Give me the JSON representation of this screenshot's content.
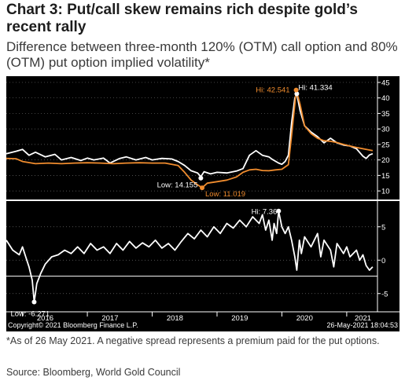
{
  "header": {
    "title": "Chart 3: Put/call skew remains rich despite gold’s recent rally",
    "subtitle": "Difference between three-month 120% (OTM) call option and 80% (OTM) put option implied volatility*"
  },
  "footer": {
    "footnote": "*As of 26 May 2021. A negative spread represents a premium paid for the put options.",
    "source": "Source: Bloomberg, World Gold Council",
    "copyright": "Copyright© 2021 Bloomberg Finance L.P.",
    "timestamp": "26-May-2021 18:04:53"
  },
  "colors": {
    "background": "#000000",
    "series_white": "#ffffff",
    "series_orange": "#f08c2e",
    "label_orange": "#f08c2e",
    "text_white": "#ffffff"
  },
  "chart_data": [
    {
      "type": "line",
      "panel": "top",
      "xlim": [
        2015.75,
        2021.45
      ],
      "ylim": [
        8,
        46
      ],
      "yticks": [
        10,
        15,
        20,
        25,
        30,
        35,
        40,
        45
      ],
      "series": [
        {
          "color": "#ffffff",
          "points": [
            [
              2015.75,
              22.0
            ],
            [
              2015.9,
              22.8
            ],
            [
              2016.0,
              23.4
            ],
            [
              2016.1,
              21.5
            ],
            [
              2016.2,
              22.5
            ],
            [
              2016.35,
              21.0
            ],
            [
              2016.5,
              21.8
            ],
            [
              2016.6,
              20.0
            ],
            [
              2016.75,
              20.8
            ],
            [
              2016.9,
              19.8
            ],
            [
              2017.0,
              20.6
            ],
            [
              2017.1,
              20.0
            ],
            [
              2017.25,
              20.6
            ],
            [
              2017.35,
              19.0
            ],
            [
              2017.5,
              20.5
            ],
            [
              2017.6,
              21.0
            ],
            [
              2017.75,
              20.0
            ],
            [
              2017.9,
              20.8
            ],
            [
              2018.0,
              20.0
            ],
            [
              2018.15,
              20.5
            ],
            [
              2018.3,
              20.3
            ],
            [
              2018.4,
              19.5
            ],
            [
              2018.5,
              18.2
            ],
            [
              2018.6,
              16.5
            ],
            [
              2018.7,
              15.8
            ],
            [
              2018.75,
              14.6
            ],
            [
              2018.8,
              16.2
            ],
            [
              2018.9,
              15.5
            ],
            [
              2019.0,
              16.0
            ],
            [
              2019.15,
              15.8
            ],
            [
              2019.3,
              16.4
            ],
            [
              2019.4,
              17.2
            ],
            [
              2019.5,
              21.5
            ],
            [
              2019.6,
              23.0
            ],
            [
              2019.7,
              21.5
            ],
            [
              2019.8,
              21.0
            ],
            [
              2019.85,
              20.2
            ],
            [
              2019.95,
              19.0
            ],
            [
              2020.0,
              18.6
            ],
            [
              2020.05,
              19.5
            ],
            [
              2020.1,
              21.5
            ],
            [
              2020.15,
              32.0
            ],
            [
              2020.2,
              40.0
            ],
            [
              2020.23,
              41.334
            ],
            [
              2020.28,
              36.0
            ],
            [
              2020.35,
              31.0
            ],
            [
              2020.45,
              29.0
            ],
            [
              2020.55,
              27.5
            ],
            [
              2020.65,
              25.5
            ],
            [
              2020.75,
              27.0
            ],
            [
              2020.85,
              25.5
            ],
            [
              2020.95,
              24.8
            ],
            [
              2021.05,
              24.5
            ],
            [
              2021.15,
              23.6
            ],
            [
              2021.25,
              21.2
            ],
            [
              2021.3,
              20.5
            ],
            [
              2021.35,
              21.6
            ],
            [
              2021.4,
              22.0
            ]
          ]
        },
        {
          "color": "#f08c2e",
          "points": [
            [
              2015.75,
              20.5
            ],
            [
              2015.9,
              20.4
            ],
            [
              2016.0,
              19.5
            ],
            [
              2016.2,
              18.8
            ],
            [
              2016.4,
              19.0
            ],
            [
              2016.6,
              18.8
            ],
            [
              2016.8,
              19.0
            ],
            [
              2017.0,
              19.1
            ],
            [
              2017.2,
              19.0
            ],
            [
              2017.4,
              18.8
            ],
            [
              2017.6,
              19.0
            ],
            [
              2017.8,
              19.1
            ],
            [
              2018.0,
              19.0
            ],
            [
              2018.2,
              19.0
            ],
            [
              2018.4,
              18.2
            ],
            [
              2018.5,
              16.0
            ],
            [
              2018.6,
              13.5
            ],
            [
              2018.7,
              12.0
            ],
            [
              2018.77,
              11.019
            ],
            [
              2018.85,
              12.5
            ],
            [
              2019.0,
              13.0
            ],
            [
              2019.15,
              13.5
            ],
            [
              2019.3,
              14.5
            ],
            [
              2019.4,
              16.0
            ],
            [
              2019.5,
              16.8
            ],
            [
              2019.6,
              17.0
            ],
            [
              2019.7,
              16.6
            ],
            [
              2019.8,
              16.5
            ],
            [
              2019.9,
              16.8
            ],
            [
              2020.0,
              17.0
            ],
            [
              2020.1,
              18.5
            ],
            [
              2020.15,
              28.0
            ],
            [
              2020.2,
              38.0
            ],
            [
              2020.22,
              42.541
            ],
            [
              2020.28,
              38.0
            ],
            [
              2020.35,
              31.0
            ],
            [
              2020.45,
              28.5
            ],
            [
              2020.55,
              27.0
            ],
            [
              2020.65,
              26.2
            ],
            [
              2020.75,
              26.0
            ],
            [
              2020.85,
              25.6
            ],
            [
              2020.95,
              25.0
            ],
            [
              2021.05,
              24.5
            ],
            [
              2021.15,
              24.0
            ],
            [
              2021.25,
              23.6
            ],
            [
              2021.35,
              23.2
            ],
            [
              2021.4,
              23.0
            ]
          ]
        }
      ],
      "annotations": [
        {
          "text": "Hi: 41.334",
          "color": "#ffffff",
          "x": 2020.23,
          "y": 41.334
        },
        {
          "text": "Hi: 42.541",
          "color": "#f08c2e",
          "x": 2020.22,
          "y": 42.541
        },
        {
          "text": "Low: 14.155",
          "color": "#ffffff",
          "x": 2018.75,
          "y": 14.155
        },
        {
          "text": "Low: 11.019",
          "color": "#f08c2e",
          "x": 2018.77,
          "y": 11.019
        }
      ]
    },
    {
      "type": "line",
      "panel": "bottom",
      "xlim": [
        2015.75,
        2021.45
      ],
      "ylim": [
        -7.5,
        8.5
      ],
      "yticks": [
        -5,
        0,
        5
      ],
      "reference_line": -2.4,
      "series": [
        {
          "color": "#ffffff",
          "points": [
            [
              2015.75,
              3.0
            ],
            [
              2015.85,
              1.5
            ],
            [
              2015.95,
              0.8
            ],
            [
              2016.0,
              2.0
            ],
            [
              2016.05,
              0.5
            ],
            [
              2016.1,
              -1.0
            ],
            [
              2016.15,
              -3.0
            ],
            [
              2016.18,
              -6.271
            ],
            [
              2016.22,
              -3.5
            ],
            [
              2016.28,
              -2.0
            ],
            [
              2016.35,
              -0.6
            ],
            [
              2016.45,
              0.5
            ],
            [
              2016.55,
              0.8
            ],
            [
              2016.65,
              1.5
            ],
            [
              2016.75,
              1.0
            ],
            [
              2016.85,
              2.0
            ],
            [
              2016.95,
              1.0
            ],
            [
              2017.05,
              2.5
            ],
            [
              2017.15,
              1.5
            ],
            [
              2017.25,
              2.0
            ],
            [
              2017.35,
              1.0
            ],
            [
              2017.45,
              2.5
            ],
            [
              2017.55,
              1.5
            ],
            [
              2017.65,
              2.8
            ],
            [
              2017.75,
              1.8
            ],
            [
              2017.85,
              2.6
            ],
            [
              2017.95,
              2.0
            ],
            [
              2018.05,
              3.0
            ],
            [
              2018.15,
              1.8
            ],
            [
              2018.25,
              2.5
            ],
            [
              2018.35,
              1.5
            ],
            [
              2018.45,
              2.8
            ],
            [
              2018.55,
              4.0
            ],
            [
              2018.65,
              3.2
            ],
            [
              2018.75,
              4.5
            ],
            [
              2018.85,
              3.5
            ],
            [
              2018.95,
              5.0
            ],
            [
              2019.05,
              4.0
            ],
            [
              2019.15,
              5.5
            ],
            [
              2019.25,
              4.8
            ],
            [
              2019.35,
              6.0
            ],
            [
              2019.45,
              5.0
            ],
            [
              2019.55,
              6.5
            ],
            [
              2019.65,
              5.5
            ],
            [
              2019.7,
              6.8
            ],
            [
              2019.75,
              4.5
            ],
            [
              2019.8,
              6.0
            ],
            [
              2019.85,
              3.0
            ],
            [
              2019.88,
              5.5
            ],
            [
              2019.92,
              4.0
            ],
            [
              2019.95,
              7.36
            ],
            [
              2020.0,
              5.0
            ],
            [
              2020.05,
              4.0
            ],
            [
              2020.1,
              5.0
            ],
            [
              2020.15,
              3.0
            ],
            [
              2020.2,
              0.5
            ],
            [
              2020.23,
              -1.5
            ],
            [
              2020.27,
              3.0
            ],
            [
              2020.3,
              1.0
            ],
            [
              2020.35,
              3.5
            ],
            [
              2020.45,
              2.0
            ],
            [
              2020.55,
              4.0
            ],
            [
              2020.6,
              0.5
            ],
            [
              2020.65,
              3.0
            ],
            [
              2020.75,
              1.5
            ],
            [
              2020.8,
              -1.0
            ],
            [
              2020.85,
              2.5
            ],
            [
              2020.95,
              1.0
            ],
            [
              2021.0,
              2.0
            ],
            [
              2021.05,
              0.5
            ],
            [
              2021.15,
              1.5
            ],
            [
              2021.2,
              0.0
            ],
            [
              2021.25,
              0.8
            ],
            [
              2021.3,
              -0.8
            ],
            [
              2021.35,
              -1.5
            ],
            [
              2021.4,
              -1.0
            ]
          ]
        }
      ],
      "annotations": [
        {
          "text": "Hi: 7.36",
          "color": "#ffffff",
          "x": 2019.95,
          "y": 7.36
        },
        {
          "text": "Low: -6.271",
          "color": "#ffffff",
          "x": 2016.18,
          "y": -6.271
        }
      ]
    }
  ],
  "x_axis": {
    "tick_labels": [
      "2016",
      "2017",
      "2018",
      "2019",
      "2020",
      "2021"
    ],
    "tick_values": [
      2016.35,
      2017.35,
      2018.35,
      2019.35,
      2020.35,
      2021.25
    ]
  }
}
